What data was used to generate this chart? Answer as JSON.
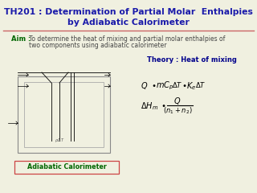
{
  "title_line1": "TH201 : Determination of Partial Molar  Enthalpies",
  "title_line2": "by Adiabatic Calorimeter",
  "title_color": "#1a1aaa",
  "separator_color": "#cc6666",
  "aim_label": "Aim :",
  "aim_label_color": "#006600",
  "aim_text": "To determine the heat of mixing and partial molar enthalpies of\ntwo components using adiabatic calorimeter",
  "aim_text_color": "#444444",
  "theory_label": "Theory : Heat of mixing",
  "theory_color": "#00008b",
  "box_label": "Adiabatic Calorimeter",
  "box_label_color": "#006600",
  "bg_color": "#f0f0e0",
  "box_border_color": "#cc4444"
}
